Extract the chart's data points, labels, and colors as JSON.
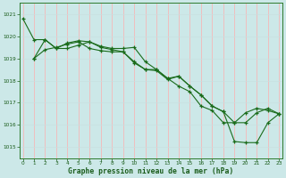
{
  "xlabel": "Graphe pression niveau de la mer (hPa)",
  "ylim": [
    1014.5,
    1021.5
  ],
  "xlim": [
    -0.3,
    23.3
  ],
  "yticks": [
    1015,
    1016,
    1017,
    1018,
    1019,
    1020,
    1021
  ],
  "xticks": [
    0,
    1,
    2,
    3,
    4,
    5,
    6,
    7,
    8,
    9,
    10,
    11,
    12,
    13,
    14,
    15,
    16,
    17,
    18,
    19,
    20,
    21,
    22,
    23
  ],
  "bg_color": "#cce8e8",
  "grid_color_v": "#f5b8b8",
  "grid_color_h": "#c8e0e0",
  "line_color": "#1a6b1a",
  "line1_x": [
    0,
    1,
    2,
    3,
    4,
    5,
    6,
    7,
    8,
    9,
    10,
    11,
    12,
    13,
    14,
    15,
    16,
    17,
    18,
    19,
    20,
    21,
    22,
    23
  ],
  "line1_y": [
    1020.8,
    1019.85,
    1019.85,
    1019.45,
    1019.7,
    1019.8,
    1019.75,
    1019.55,
    1019.45,
    1019.45,
    1019.5,
    1018.85,
    1018.5,
    1018.1,
    1017.75,
    1017.5,
    1016.85,
    1016.65,
    1016.1,
    1016.1,
    1016.55,
    1016.75,
    1016.65,
    1016.5
  ],
  "line2_x": [
    1,
    2,
    3,
    4,
    5,
    6,
    7,
    8,
    9,
    10,
    11,
    12,
    13,
    14,
    15,
    16,
    17,
    18,
    19,
    20,
    21,
    22,
    23
  ],
  "line2_y": [
    1019.0,
    1019.4,
    1019.5,
    1019.65,
    1019.75,
    1019.45,
    1019.35,
    1019.3,
    1019.3,
    1018.8,
    1018.5,
    1018.5,
    1018.1,
    1018.2,
    1017.75,
    1017.35,
    1016.85,
    1016.6,
    1016.1,
    1016.1,
    1016.55,
    1016.75,
    1016.5
  ],
  "line3_x": [
    1,
    2,
    3,
    4,
    5,
    6,
    7,
    8,
    9,
    10,
    11,
    12,
    13,
    14,
    15,
    16,
    17,
    18,
    19,
    20,
    21,
    22,
    23
  ],
  "line3_y": [
    1019.0,
    1019.85,
    1019.45,
    1019.45,
    1019.6,
    1019.75,
    1019.5,
    1019.4,
    1019.3,
    1018.85,
    1018.5,
    1018.45,
    1018.05,
    1018.2,
    1017.75,
    1017.35,
    1016.85,
    1016.6,
    1015.25,
    1015.2,
    1015.2,
    1016.1,
    1016.5
  ]
}
